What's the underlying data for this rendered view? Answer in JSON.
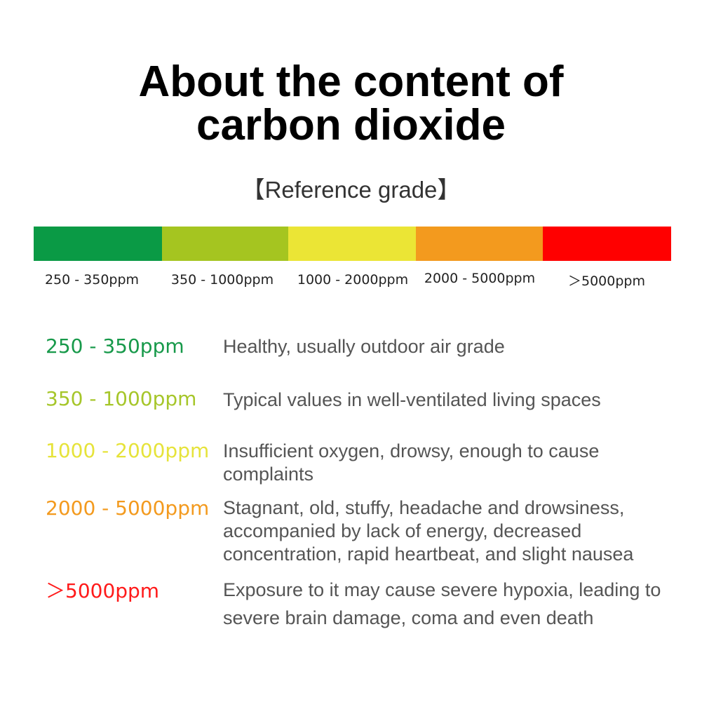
{
  "header": {
    "title_lines": [
      "About the content of",
      "carbon dioxide"
    ],
    "subtitle": "【Reference grade】"
  },
  "scale": {
    "labels": [
      "250 - 350ppm",
      "350 - 1000ppm",
      "1000 - 2000ppm",
      "2000 - 5000ppm",
      "＞5000ppm"
    ]
  },
  "grades": [
    {
      "range": "250 - 350ppm",
      "description": "Healthy, usually outdoor air grade"
    },
    {
      "range": "350 - 1000ppm",
      "description": "Typical values in well-ventilated living spaces"
    },
    {
      "range": "1000 - 2000ppm",
      "description": "Insufficient oxygen, drowsy, enough to cause complaints"
    },
    {
      "range": "2000 - 5000ppm",
      "description": "Stagnant, old, stuffy, headache and drowsiness, accompanied by lack of energy, decreased concentration, rapid heartbeat, and slight nausea"
    },
    {
      "range": "＞5000ppm",
      "description": "Exposure to it may cause severe hypoxia, leading to severe brain damage, coma and even death"
    }
  ]
}
